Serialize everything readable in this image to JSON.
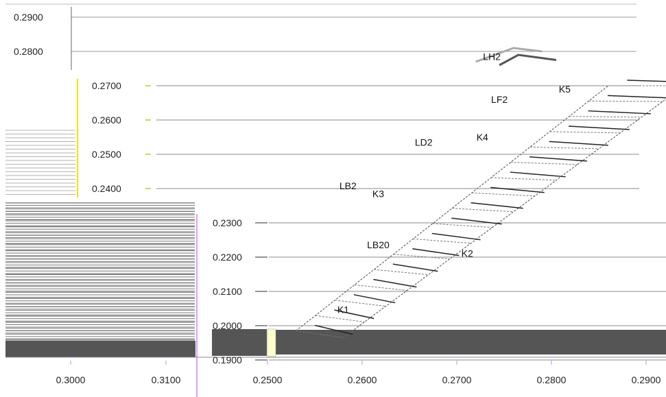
{
  "chart_data": {
    "type": "line",
    "title": "",
    "xlabel": "",
    "ylabel": "",
    "panels": [
      {
        "name": "top",
        "ylim": [
          0.275,
          0.29
        ],
        "yticks": [
          "0.2900",
          "0.2800"
        ]
      },
      {
        "name": "middle",
        "ylim": [
          0.238,
          0.272
        ],
        "yticks": [
          "0.2700",
          "0.2600",
          "0.2500",
          "0.2400"
        ],
        "xticks": [
          "0.3000",
          "0.3100"
        ]
      },
      {
        "name": "bottom",
        "xlim": [
          0.2425,
          0.2935
        ],
        "ylim": [
          0.1885,
          0.2345
        ],
        "xticks": [
          "0.2500",
          "0.2600",
          "0.2700",
          "0.2800",
          "0.2900"
        ],
        "yticks": [
          "0.2300",
          "0.2200",
          "0.2100",
          "0.2000",
          "0.1900"
        ]
      }
    ],
    "annotations": [
      {
        "text": "LH2",
        "x": 0.2737,
        "y": 0.2775
      },
      {
        "text": "K5",
        "x": 0.2814,
        "y": 0.268
      },
      {
        "text": "LF2",
        "x": 0.2745,
        "y": 0.265
      },
      {
        "text": "K4",
        "x": 0.2727,
        "y": 0.254
      },
      {
        "text": "LD2",
        "x": 0.2665,
        "y": 0.2525
      },
      {
        "text": "LB2",
        "x": 0.2585,
        "y": 0.2398
      },
      {
        "text": "K3",
        "x": 0.2617,
        "y": 0.2375
      },
      {
        "text": "LB20",
        "x": 0.2617,
        "y": 0.2226
      },
      {
        "text": "K2",
        "x": 0.2711,
        "y": 0.2201
      },
      {
        "text": "K1",
        "x": 0.258,
        "y": 0.2037
      }
    ]
  }
}
